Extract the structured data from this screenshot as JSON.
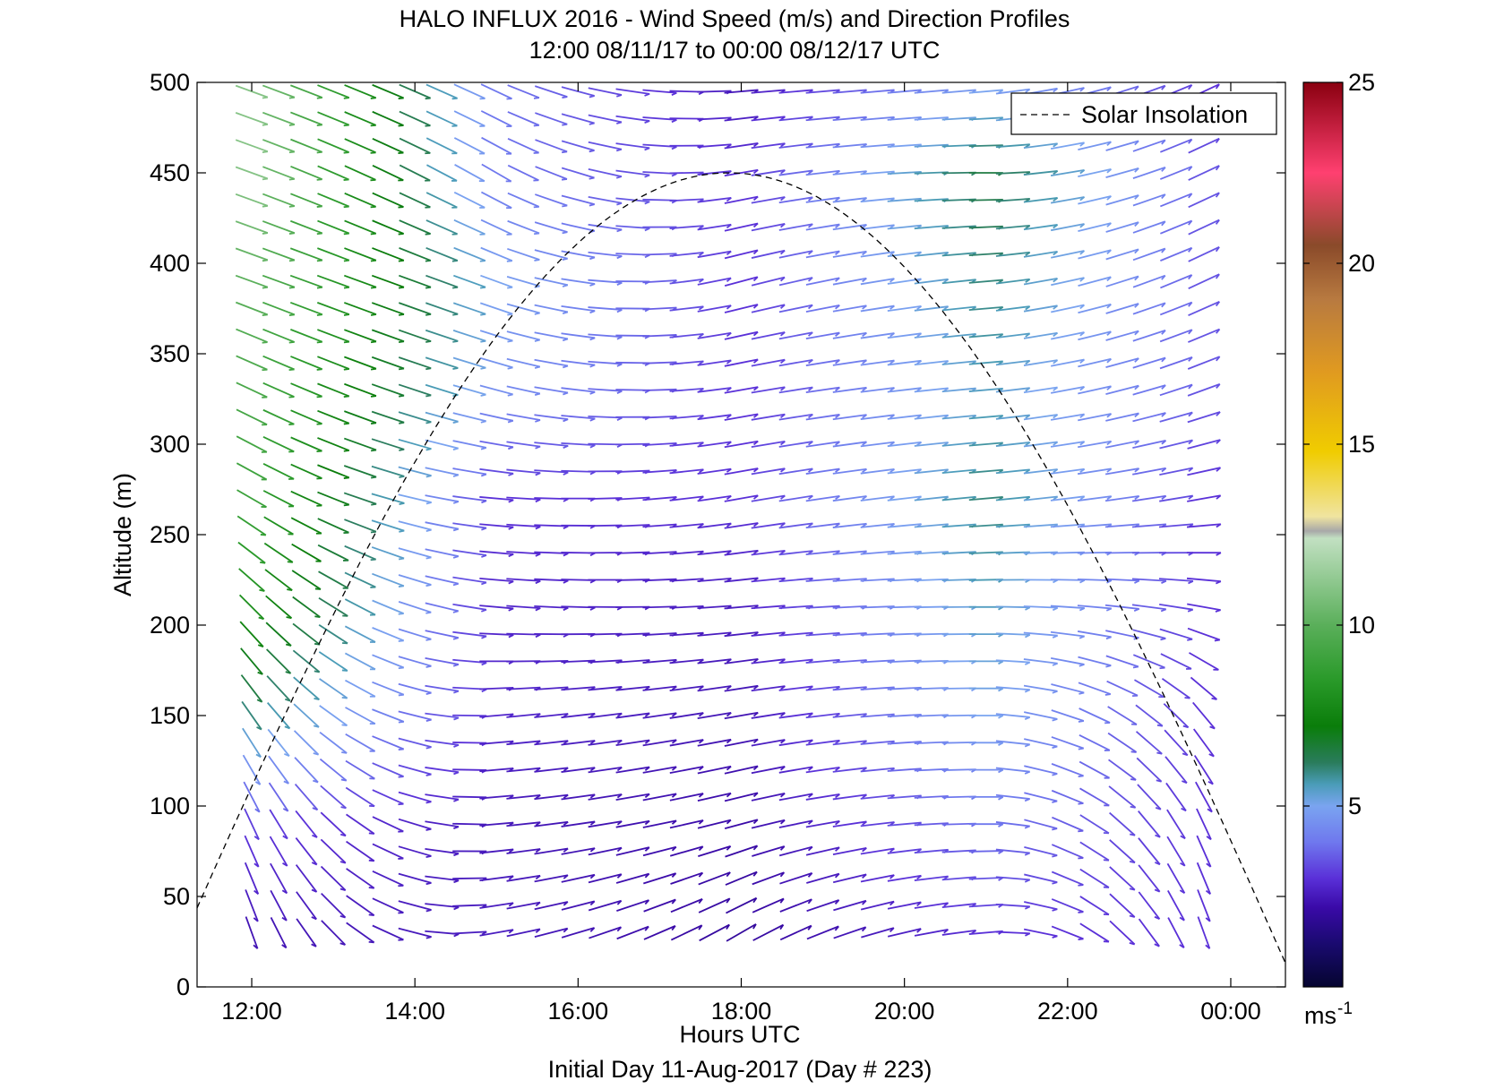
{
  "chart_data": {
    "type": "scatter",
    "subtype": "wind-barb-profile",
    "title": "HALO INFLUX 2016 - Wind Speed (m/s) and Direction Profiles",
    "subtitle": "12:00 08/11/17 to 00:00 08/12/17  UTC",
    "xlabel": "Hours UTC",
    "ylabel": "Altitude (m)",
    "footer": "Initial Day 11-Aug-2017 (Day # 223)",
    "x_unit": "hours since 00:00 08/11/17 UTC",
    "xlim": [
      11.33,
      24.67
    ],
    "ylim": [
      0,
      500
    ],
    "x_ticks": [
      12,
      14,
      16,
      18,
      20,
      22,
      24
    ],
    "x_tick_labels": [
      "12:00",
      "14:00",
      "16:00",
      "18:00",
      "20:00",
      "22:00",
      "00:00"
    ],
    "y_ticks": [
      0,
      50,
      100,
      150,
      200,
      250,
      300,
      350,
      400,
      450,
      500
    ],
    "y_tick_labels": [
      "0",
      "50",
      "100",
      "150",
      "200",
      "250",
      "300",
      "350",
      "400",
      "450",
      "500"
    ],
    "legend": {
      "entries": [
        "Solar Insolation"
      ],
      "placement": "top-right"
    },
    "colorbar": {
      "label": "ms",
      "label_superscript": "-1",
      "range": [
        0,
        25
      ],
      "ticks": [
        5,
        10,
        15,
        20,
        25
      ],
      "tick_labels": [
        "5",
        "10",
        "15",
        "20",
        "25"
      ],
      "colors": [
        {
          "v": 0,
          "c": "#050530"
        },
        {
          "v": 1.2,
          "c": "#1a0a70"
        },
        {
          "v": 2.2,
          "c": "#3a0aa8"
        },
        {
          "v": 3.0,
          "c": "#5a30d8"
        },
        {
          "v": 4.0,
          "c": "#6f78ee"
        },
        {
          "v": 5.0,
          "c": "#7aa4f0"
        },
        {
          "v": 5.6,
          "c": "#4a9cb8"
        },
        {
          "v": 6.2,
          "c": "#2a7c5c"
        },
        {
          "v": 7.2,
          "c": "#0a7d0a"
        },
        {
          "v": 8.5,
          "c": "#2a9a2a"
        },
        {
          "v": 10,
          "c": "#5aaf5a"
        },
        {
          "v": 12.4,
          "c": "#c2e0c2"
        },
        {
          "v": 12.6,
          "c": "#a8a8a8"
        },
        {
          "v": 13.0,
          "c": "#f0e4a0"
        },
        {
          "v": 14.8,
          "c": "#f0cc00"
        },
        {
          "v": 17,
          "c": "#e09a20"
        },
        {
          "v": 19,
          "c": "#b87a40"
        },
        {
          "v": 20.5,
          "c": "#8a4a2a"
        },
        {
          "v": 22.5,
          "c": "#ff4070"
        },
        {
          "v": 25,
          "c": "#8a0010"
        }
      ]
    },
    "solar_insolation": {
      "peak_time": 17.85,
      "peak_altitude": 450,
      "zero_times": [
        10.9,
        24.8
      ],
      "style": "dashed",
      "color": "#000000"
    },
    "times": [
      12.0,
      12.33,
      12.67,
      13.0,
      13.33,
      13.67,
      14.0,
      14.33,
      14.67,
      15.0,
      15.33,
      15.67,
      16.0,
      16.33,
      16.67,
      17.0,
      17.33,
      17.67,
      18.0,
      18.33,
      18.67,
      19.0,
      19.33,
      19.67,
      20.0,
      20.33,
      20.67,
      21.0,
      21.33,
      21.67,
      22.0,
      22.33,
      22.67,
      23.0,
      23.33,
      23.67
    ],
    "altitudes": [
      30,
      45,
      60,
      75,
      90,
      105,
      120,
      135,
      150,
      165,
      180,
      195,
      210,
      225,
      240,
      255,
      270,
      285,
      300,
      315,
      330,
      345,
      360,
      375,
      390,
      405,
      420,
      435,
      450,
      465,
      480,
      495
    ],
    "wind_samples": [
      {
        "t": 12.0,
        "z": 30,
        "speed": 2.4,
        "dir": 200
      },
      {
        "t": 12.0,
        "z": 90,
        "speed": 3.2,
        "dir": 205
      },
      {
        "t": 12.0,
        "z": 150,
        "speed": 6.0,
        "dir": 215
      },
      {
        "t": 12.0,
        "z": 210,
        "speed": 8.0,
        "dir": 225
      },
      {
        "t": 12.0,
        "z": 270,
        "speed": 9.0,
        "dir": 240
      },
      {
        "t": 12.0,
        "z": 330,
        "speed": 9.5,
        "dir": 245
      },
      {
        "t": 12.0,
        "z": 390,
        "speed": 10.0,
        "dir": 250
      },
      {
        "t": 12.0,
        "z": 450,
        "speed": 11.0,
        "dir": 250
      },
      {
        "t": 12.0,
        "z": 495,
        "speed": 11.0,
        "dir": 250
      },
      {
        "t": 15.0,
        "z": 30,
        "speed": 2.6,
        "dir": 280
      },
      {
        "t": 15.0,
        "z": 90,
        "speed": 2.5,
        "dir": 275
      },
      {
        "t": 15.0,
        "z": 150,
        "speed": 2.8,
        "dir": 275
      },
      {
        "t": 15.0,
        "z": 210,
        "speed": 2.8,
        "dir": 265
      },
      {
        "t": 15.0,
        "z": 270,
        "speed": 3.0,
        "dir": 265
      },
      {
        "t": 15.0,
        "z": 330,
        "speed": 4.5,
        "dir": 255
      },
      {
        "t": 15.0,
        "z": 390,
        "speed": 5.0,
        "dir": 250
      },
      {
        "t": 15.0,
        "z": 450,
        "speed": 4.0,
        "dir": 240
      },
      {
        "t": 15.0,
        "z": 495,
        "speed": 4.0,
        "dir": 245
      },
      {
        "t": 18.0,
        "z": 30,
        "speed": 2.0,
        "dir": 300
      },
      {
        "t": 18.0,
        "z": 90,
        "speed": 2.2,
        "dir": 285
      },
      {
        "t": 18.0,
        "z": 150,
        "speed": 2.4,
        "dir": 280
      },
      {
        "t": 18.0,
        "z": 210,
        "speed": 2.6,
        "dir": 275
      },
      {
        "t": 18.0,
        "z": 270,
        "speed": 3.0,
        "dir": 280
      },
      {
        "t": 18.0,
        "z": 330,
        "speed": 3.0,
        "dir": 280
      },
      {
        "t": 18.0,
        "z": 390,
        "speed": 3.0,
        "dir": 285
      },
      {
        "t": 18.0,
        "z": 450,
        "speed": 3.0,
        "dir": 280
      },
      {
        "t": 18.0,
        "z": 495,
        "speed": 2.5,
        "dir": 275
      },
      {
        "t": 21.0,
        "z": 30,
        "speed": 3.0,
        "dir": 275
      },
      {
        "t": 21.0,
        "z": 90,
        "speed": 4.0,
        "dir": 270
      },
      {
        "t": 21.0,
        "z": 150,
        "speed": 5.0,
        "dir": 270
      },
      {
        "t": 21.0,
        "z": 210,
        "speed": 5.5,
        "dir": 270
      },
      {
        "t": 21.0,
        "z": 270,
        "speed": 6.0,
        "dir": 275
      },
      {
        "t": 21.0,
        "z": 330,
        "speed": 5.5,
        "dir": 275
      },
      {
        "t": 21.0,
        "z": 390,
        "speed": 6.0,
        "dir": 275
      },
      {
        "t": 21.0,
        "z": 450,
        "speed": 6.5,
        "dir": 270
      },
      {
        "t": 21.0,
        "z": 495,
        "speed": 5.0,
        "dir": 275
      },
      {
        "t": 23.67,
        "z": 30,
        "speed": 3.0,
        "dir": 200
      },
      {
        "t": 23.67,
        "z": 90,
        "speed": 3.0,
        "dir": 205
      },
      {
        "t": 23.67,
        "z": 150,
        "speed": 3.0,
        "dir": 220
      },
      {
        "t": 23.67,
        "z": 210,
        "speed": 3.0,
        "dir": 260
      },
      {
        "t": 23.67,
        "z": 270,
        "speed": 3.0,
        "dir": 280
      },
      {
        "t": 23.67,
        "z": 330,
        "speed": 3.5,
        "dir": 290
      },
      {
        "t": 23.67,
        "z": 390,
        "speed": 3.5,
        "dir": 295
      },
      {
        "t": 23.67,
        "z": 450,
        "speed": 3.5,
        "dir": 295
      },
      {
        "t": 23.67,
        "z": 495,
        "speed": 3.0,
        "dir": 295
      }
    ]
  }
}
